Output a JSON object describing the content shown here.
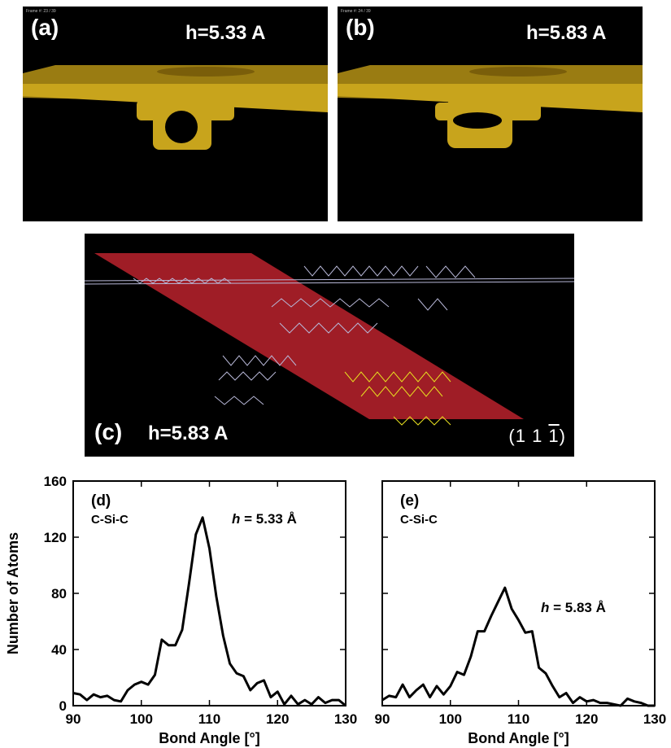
{
  "panels": {
    "a": {
      "label": "(a)",
      "height_label": "h=5.33 A",
      "frame": "Frame #: 23 / 39"
    },
    "b": {
      "label": "(b)",
      "height_label": "h=5.83 A",
      "frame": "Frame #: 24 / 39"
    },
    "c": {
      "label": "(c)",
      "height_label": "h=5.83 A",
      "plane_prefix": "(1 1 ",
      "plane_bar": "1",
      "plane_suffix": ")"
    }
  },
  "colors": {
    "atoms": "#c8a41c",
    "atoms_highlight": "#f0d060",
    "background": "#000000",
    "plane": "#b0202a",
    "bonds": "#b8b8d8",
    "bonds_highlight": "#e8e020",
    "line": "#000000"
  },
  "chart_data": [
    {
      "type": "line",
      "panel_label": "(d)",
      "series_label": "C-Si-C",
      "annotation": {
        "h": "h",
        "rest": " = 5.33 Å"
      },
      "xlabel": "Bond Angle [°]",
      "ylabel": "Number of Atoms",
      "xlim": [
        90,
        130
      ],
      "ylim": [
        0,
        160
      ],
      "xticks": [
        90,
        100,
        110,
        120,
        130
      ],
      "yticks": [
        0,
        40,
        80,
        120,
        160
      ],
      "x": [
        90,
        91,
        92,
        93,
        94,
        95,
        96,
        97,
        98,
        99,
        100,
        101,
        102,
        103,
        104,
        105,
        106,
        107,
        108,
        109,
        110,
        111,
        112,
        113,
        114,
        115,
        116,
        117,
        118,
        119,
        120,
        121,
        122,
        123,
        124,
        125,
        126,
        127,
        128,
        129,
        130
      ],
      "y": [
        9,
        8,
        4,
        8,
        6,
        7,
        4,
        3,
        11,
        15,
        17,
        15,
        22,
        47,
        43,
        43,
        54,
        87,
        122,
        134,
        112,
        78,
        50,
        30,
        23,
        21,
        11,
        16,
        18,
        6,
        10,
        1,
        7,
        1,
        4,
        1,
        6,
        2,
        4,
        4,
        0
      ]
    },
    {
      "type": "line",
      "panel_label": "(e)",
      "series_label": "C-Si-C",
      "annotation": {
        "h": "h",
        "rest": " = 5.83 Å"
      },
      "xlabel": "Bond Angle [°]",
      "ylabel": "",
      "xlim": [
        90,
        130
      ],
      "ylim": [
        0,
        160
      ],
      "xticks": [
        90,
        100,
        110,
        120,
        130
      ],
      "yticks": [
        0,
        40,
        80,
        120,
        160
      ],
      "x": [
        90,
        91,
        92,
        93,
        94,
        95,
        96,
        97,
        98,
        99,
        100,
        101,
        102,
        103,
        104,
        105,
        106,
        107,
        108,
        109,
        110,
        111,
        112,
        113,
        114,
        115,
        116,
        117,
        118,
        119,
        120,
        121,
        122,
        123,
        124,
        125,
        126,
        127,
        128,
        129,
        130
      ],
      "y": [
        4,
        7,
        6,
        15,
        6,
        11,
        15,
        6,
        14,
        8,
        14,
        24,
        22,
        35,
        53,
        53,
        64,
        74,
        84,
        69,
        61,
        52,
        53,
        27,
        23,
        14,
        6,
        9,
        2,
        6,
        3,
        4,
        2,
        2,
        1,
        0,
        5,
        3,
        2,
        0,
        0
      ]
    }
  ]
}
